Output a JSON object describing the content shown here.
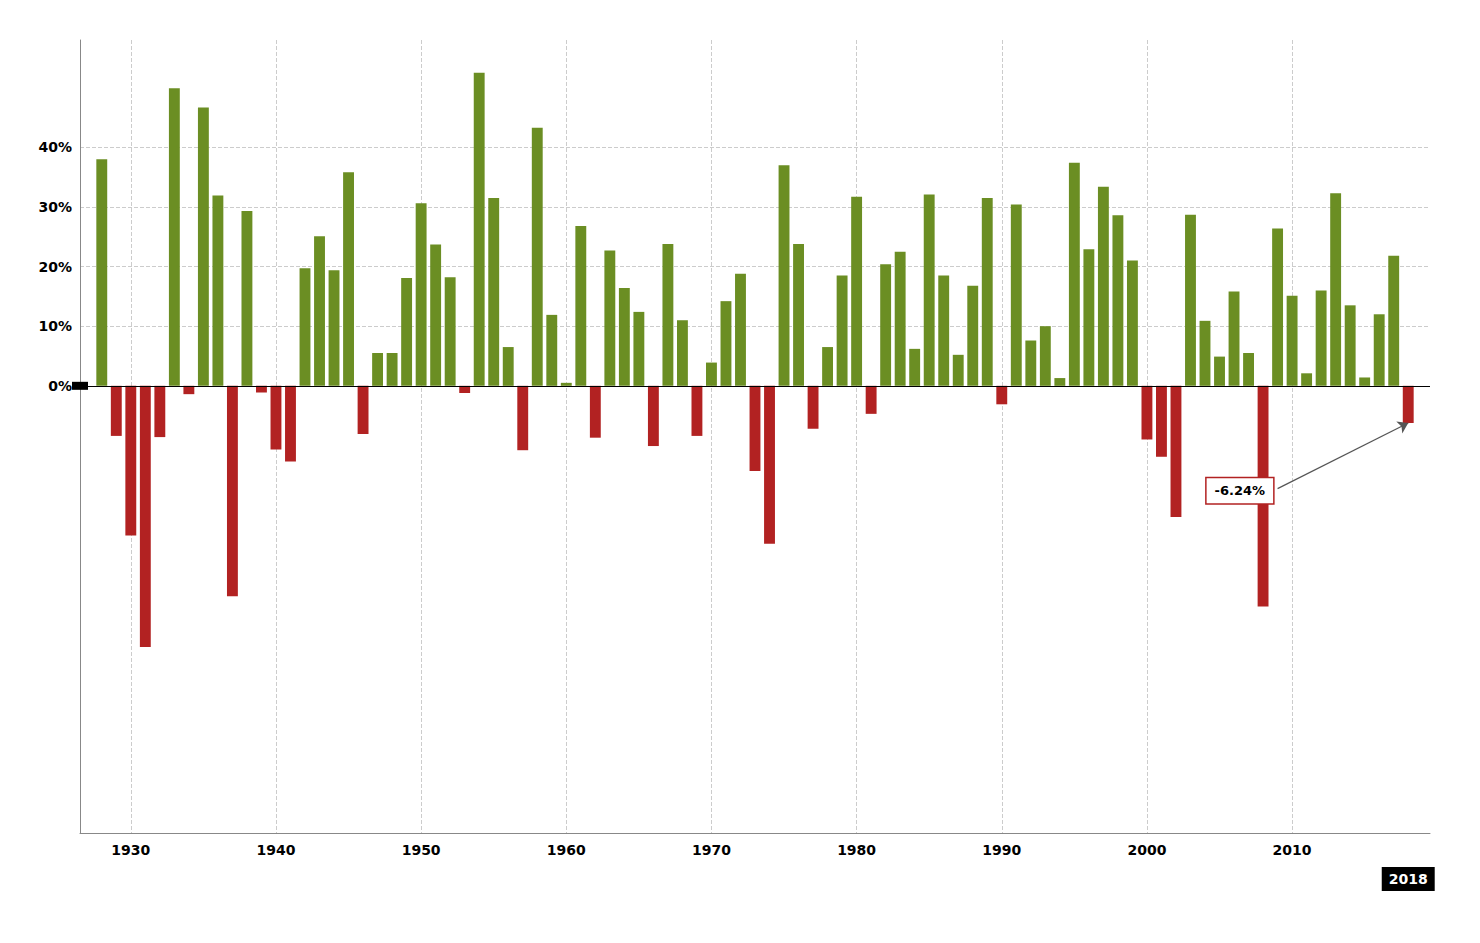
{
  "chart_data": {
    "type": "bar",
    "x": [
      1928,
      1929,
      1930,
      1931,
      1932,
      1933,
      1934,
      1935,
      1936,
      1937,
      1938,
      1939,
      1940,
      1941,
      1942,
      1943,
      1944,
      1945,
      1946,
      1947,
      1948,
      1949,
      1950,
      1951,
      1952,
      1953,
      1954,
      1955,
      1956,
      1957,
      1958,
      1959,
      1960,
      1961,
      1962,
      1963,
      1964,
      1965,
      1966,
      1967,
      1968,
      1969,
      1970,
      1971,
      1972,
      1973,
      1974,
      1975,
      1976,
      1977,
      1978,
      1979,
      1980,
      1981,
      1982,
      1983,
      1984,
      1985,
      1986,
      1987,
      1988,
      1989,
      1990,
      1991,
      1992,
      1993,
      1994,
      1995,
      1996,
      1997,
      1998,
      1999,
      2000,
      2001,
      2002,
      2003,
      2004,
      2005,
      2006,
      2007,
      2008,
      2009,
      2010,
      2011,
      2012,
      2013,
      2014,
      2015,
      2016,
      2017,
      2018
    ],
    "values": [
      38.0,
      -8.4,
      -25.1,
      -43.8,
      -8.6,
      49.9,
      -1.4,
      46.7,
      31.9,
      -35.3,
      29.3,
      -1.1,
      -10.7,
      -12.7,
      19.7,
      25.1,
      19.4,
      35.8,
      -8.1,
      5.5,
      5.5,
      18.1,
      30.6,
      23.7,
      18.2,
      -1.2,
      52.5,
      31.5,
      6.5,
      -10.8,
      43.3,
      11.9,
      0.5,
      26.8,
      -8.7,
      22.7,
      16.4,
      12.4,
      -10.1,
      23.8,
      11.0,
      -8.4,
      3.9,
      14.2,
      18.8,
      -14.3,
      -26.5,
      37.0,
      23.8,
      -7.2,
      6.5,
      18.5,
      31.7,
      -4.7,
      20.4,
      22.5,
      6.2,
      32.1,
      18.5,
      5.2,
      16.8,
      31.5,
      -3.1,
      30.4,
      7.6,
      10.0,
      1.3,
      37.4,
      22.9,
      33.4,
      28.6,
      21.0,
      -9.0,
      -11.9,
      -22.0,
      28.7,
      10.9,
      4.9,
      15.8,
      5.5,
      -37.0,
      26.4,
      15.1,
      2.1,
      16.0,
      32.3,
      13.5,
      1.4,
      12.0,
      21.8,
      -6.24
    ],
    "colors": [
      "#6b8e23",
      "#b22222",
      "#b22222",
      "#b22222",
      "#b22222",
      "#6b8e23",
      "#b22222",
      "#6b8e23",
      "#6b8e23",
      "#b22222",
      "#6b8e23",
      "#b22222",
      "#b22222",
      "#b22222",
      "#6b8e23",
      "#6b8e23",
      "#6b8e23",
      "#6b8e23",
      "#b22222",
      "#6b8e23",
      "#6b8e23",
      "#6b8e23",
      "#6b8e23",
      "#6b8e23",
      "#6b8e23",
      "#b22222",
      "#6b8e23",
      "#6b8e23",
      "#6b8e23",
      "#b22222",
      "#6b8e23",
      "#6b8e23",
      "#6b8e23",
      "#6b8e23",
      "#b22222",
      "#6b8e23",
      "#6b8e23",
      "#6b8e23",
      "#b22222",
      "#6b8e23",
      "#6b8e23",
      "#b22222",
      "#6b8e23",
      "#6b8e23",
      "#6b8e23",
      "#b22222",
      "#b22222",
      "#6b8e23",
      "#6b8e23",
      "#b22222",
      "#6b8e23",
      "#6b8e23",
      "#6b8e23",
      "#b22222",
      "#6b8e23",
      "#6b8e23",
      "#6b8e23",
      "#6b8e23",
      "#6b8e23",
      "#6b8e23",
      "#6b8e23",
      "#6b8e23",
      "#b22222",
      "#6b8e23",
      "#6b8e23",
      "#6b8e23",
      "#6b8e23",
      "#6b8e23",
      "#6b8e23",
      "#6b8e23",
      "#6b8e23",
      "#6b8e23",
      "#b22222",
      "#b22222",
      "#b22222",
      "#6b8e23",
      "#6b8e23",
      "#6b8e23",
      "#6b8e23",
      "#6b8e23",
      "#b22222",
      "#6b8e23",
      "#6b8e23",
      "#6b8e23",
      "#6b8e23",
      "#6b8e23",
      "#6b8e23",
      "#6b8e23",
      "#6b8e23",
      "#6b8e23",
      "#b22222"
    ],
    "xlim": [
      1926.5,
      2019.5
    ],
    "xticks": [
      1930,
      1940,
      1950,
      1960,
      1970,
      1980,
      1990,
      2000,
      2010
    ],
    "ylim": [
      -75,
      58
    ],
    "yticks": [
      {
        "value": 0,
        "label": "0%"
      },
      {
        "value": 10,
        "label": "10%"
      },
      {
        "value": 20,
        "label": "20%"
      },
      {
        "value": 30,
        "label": "30%"
      },
      {
        "value": 40,
        "label": "40%"
      }
    ],
    "grid": true,
    "annotations": [
      {
        "text": "2018",
        "x": 2018
      },
      {
        "text": "-6.24%",
        "x": 2018,
        "y": -6.24
      }
    ]
  }
}
